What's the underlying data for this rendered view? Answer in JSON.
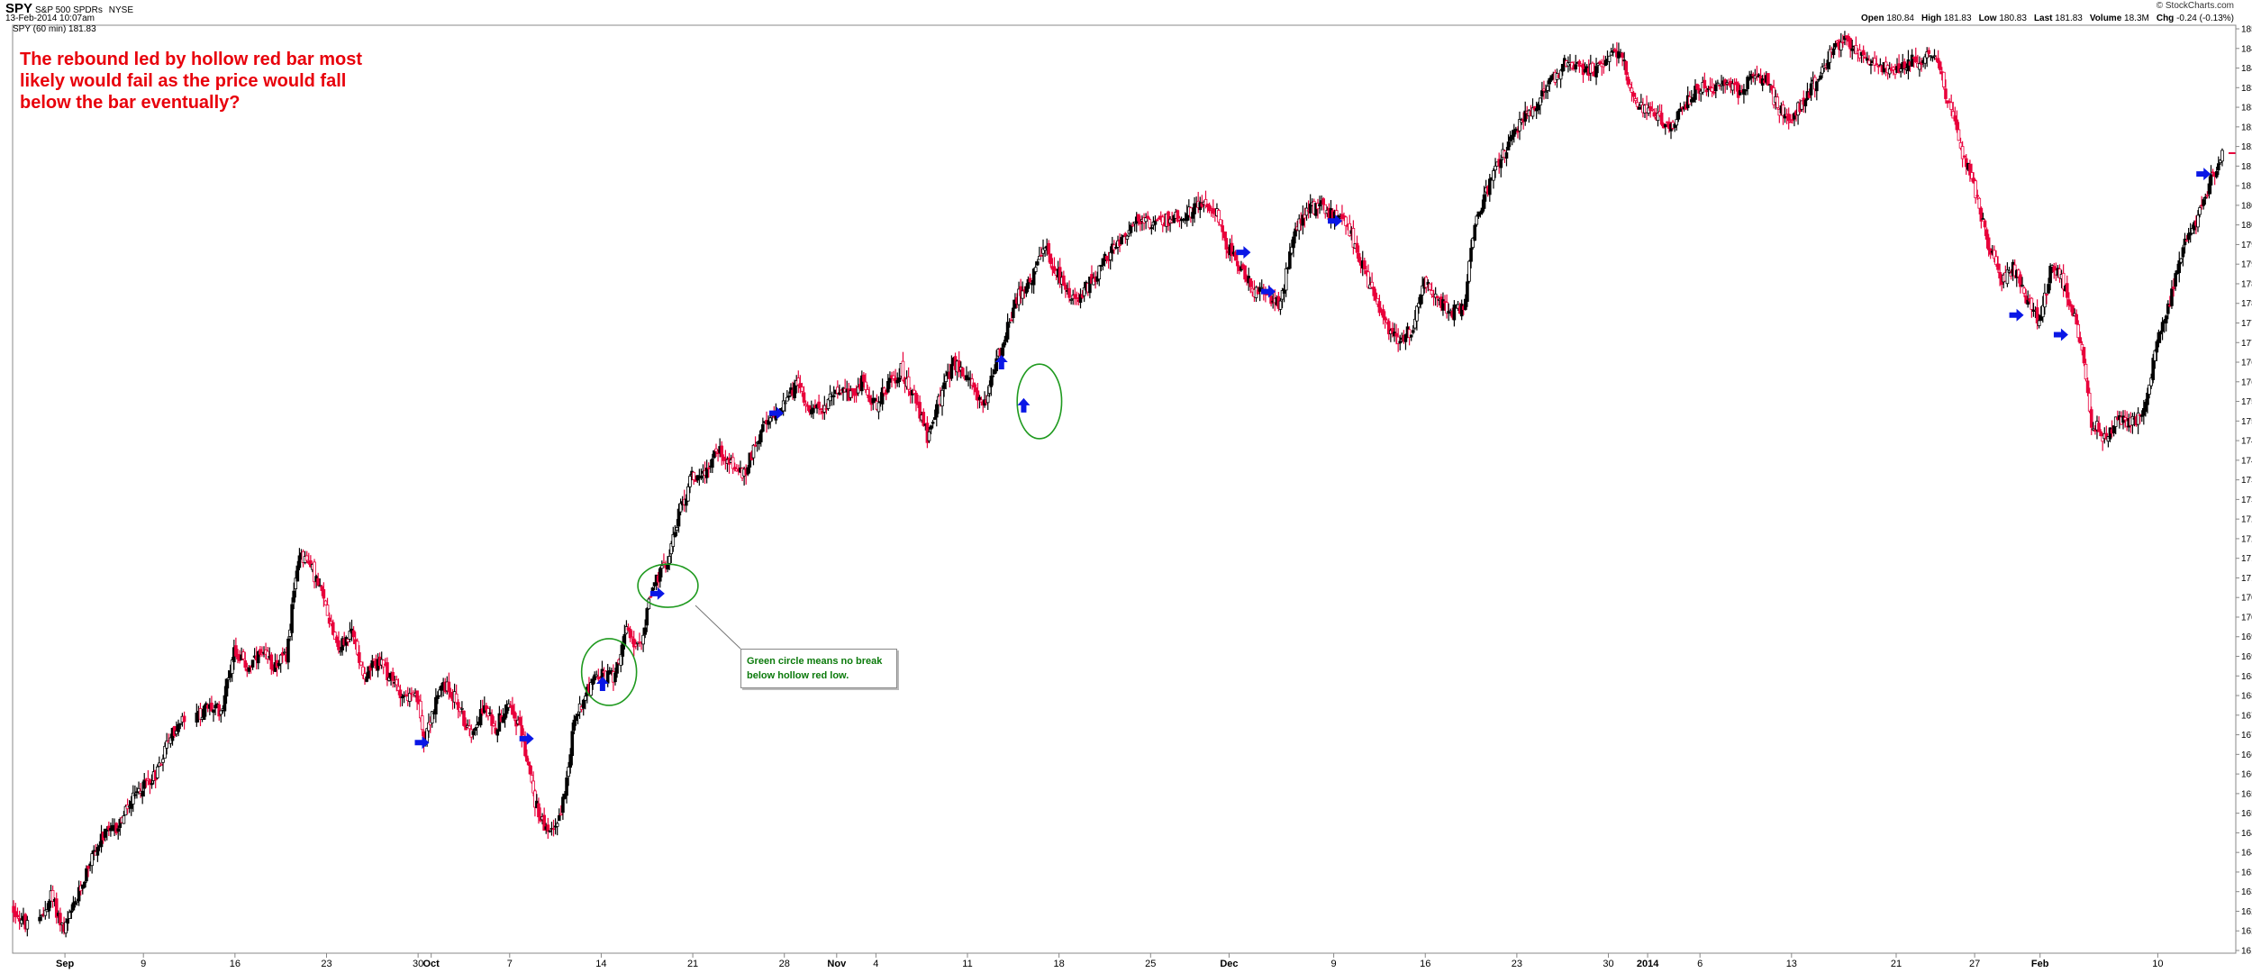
{
  "header": {
    "symbol": "SPY",
    "name": "S&P 500 SPDRs",
    "exchange": "NYSE",
    "date": "13-Feb-2014 10:07am",
    "legend": "SPY (60 min) 181.83",
    "brand": "© StockCharts.com",
    "quote": [
      {
        "label": "Open",
        "value": "180.84"
      },
      {
        "label": "High",
        "value": "181.83"
      },
      {
        "label": "Low",
        "value": "180.83"
      },
      {
        "label": "Last",
        "value": "181.83"
      },
      {
        "label": "Volume",
        "value": "18.3M"
      },
      {
        "label": "Chg",
        "value": "-0.24 (-0.13%)"
      }
    ]
  },
  "annotation": "The rebound led by hollow red bar most likely would fail as the price would fall below the bar eventually?",
  "callout": "Green circle means no break below hollow red low.",
  "colors": {
    "up": "#000000",
    "down": "#e8003b",
    "arrow": "#0a17e6",
    "circle": "#1f9a1f",
    "annotation": "#e8000b",
    "callout_text": "#0b7a0b"
  },
  "chart_data": {
    "type": "candlestick",
    "title": "SPY (60 min)",
    "y_axis": {
      "min": 161.5,
      "max": 185.0,
      "step": 0.5,
      "side": "right"
    },
    "x_axis": {
      "labels": [
        {
          "text": "Sep",
          "day": 0
        },
        {
          "text": "9",
          "day": 6
        },
        {
          "text": "16",
          "day": 13
        },
        {
          "text": "23",
          "day": 20
        },
        {
          "text": "30",
          "day": 27
        },
        {
          "text": "Oct",
          "day": 28
        },
        {
          "text": "7",
          "day": 34
        },
        {
          "text": "14",
          "day": 41
        },
        {
          "text": "21",
          "day": 48
        },
        {
          "text": "28",
          "day": 55
        },
        {
          "text": "Nov",
          "day": 59
        },
        {
          "text": "4",
          "day": 62
        },
        {
          "text": "11",
          "day": 69
        },
        {
          "text": "18",
          "day": 76
        },
        {
          "text": "25",
          "day": 83
        },
        {
          "text": "Dec",
          "day": 89
        },
        {
          "text": "9",
          "day": 97
        },
        {
          "text": "16",
          "day": 104
        },
        {
          "text": "23",
          "day": 111
        },
        {
          "text": "30",
          "day": 118
        },
        {
          "text": "2014",
          "day": 121
        },
        {
          "text": "6",
          "day": 125
        },
        {
          "text": "13",
          "day": 132
        },
        {
          "text": "21",
          "day": 140
        },
        {
          "text": "27",
          "day": 146
        },
        {
          "text": "Feb",
          "day": 151
        },
        {
          "text": "10",
          "day": 160
        }
      ],
      "day_range": [
        -4,
        165
      ]
    },
    "price_path": [
      [
        -4,
        162.6
      ],
      [
        -2,
        162.1
      ],
      [
        -1,
        162.9
      ],
      [
        0,
        162.0
      ],
      [
        1,
        162.8
      ],
      [
        2,
        163.8
      ],
      [
        3,
        164.4
      ],
      [
        4,
        164.6
      ],
      [
        5,
        165.2
      ],
      [
        6,
        165.7
      ],
      [
        7,
        166.0
      ],
      [
        8,
        166.9
      ],
      [
        10,
        167.4
      ],
      [
        11,
        167.7
      ],
      [
        12,
        167.6
      ],
      [
        13,
        169.2
      ],
      [
        14,
        168.7
      ],
      [
        15,
        169.0
      ],
      [
        16,
        168.8
      ],
      [
        17,
        169.0
      ],
      [
        18,
        171.7
      ],
      [
        19,
        171.2
      ],
      [
        20,
        170.3
      ],
      [
        21,
        169.2
      ],
      [
        22,
        169.6
      ],
      [
        23,
        168.5
      ],
      [
        24,
        168.9
      ],
      [
        25,
        168.4
      ],
      [
        26,
        168.0
      ],
      [
        27,
        167.9
      ],
      [
        27.5,
        166.9
      ],
      [
        28,
        167.4
      ],
      [
        29,
        168.3
      ],
      [
        30,
        167.9
      ],
      [
        31,
        167.0
      ],
      [
        32,
        167.7
      ],
      [
        33,
        167.2
      ],
      [
        34,
        167.9
      ],
      [
        35,
        167.0
      ],
      [
        35.5,
        166.2
      ],
      [
        36,
        165.3
      ],
      [
        37,
        164.4
      ],
      [
        38,
        165.0
      ],
      [
        39,
        167.3
      ],
      [
        40,
        168.2
      ],
      [
        41,
        168.5
      ],
      [
        42,
        168.5
      ],
      [
        43,
        169.6
      ],
      [
        44,
        169.2
      ],
      [
        45,
        170.8
      ],
      [
        46,
        171.3
      ],
      [
        47,
        172.6
      ],
      [
        48,
        173.6
      ],
      [
        49,
        173.7
      ],
      [
        50,
        174.3
      ],
      [
        51,
        173.9
      ],
      [
        52,
        173.6
      ],
      [
        53,
        174.6
      ],
      [
        54,
        175.0
      ],
      [
        55,
        175.5
      ],
      [
        56,
        175.9
      ],
      [
        57,
        175.4
      ],
      [
        58,
        175.2
      ],
      [
        59,
        175.9
      ],
      [
        60,
        175.6
      ],
      [
        61,
        176.0
      ],
      [
        62,
        175.4
      ],
      [
        63,
        175.9
      ],
      [
        64,
        176.3
      ],
      [
        65,
        175.6
      ],
      [
        66,
        174.6
      ],
      [
        67,
        175.6
      ],
      [
        68,
        176.5
      ],
      [
        69,
        176.1
      ],
      [
        70,
        175.6
      ],
      [
        70.5,
        175.3
      ],
      [
        71,
        176.3
      ],
      [
        72,
        177.2
      ],
      [
        73,
        178.3
      ],
      [
        74,
        178.6
      ],
      [
        75,
        179.4
      ],
      [
        76,
        178.7
      ],
      [
        77,
        178.0
      ],
      [
        78,
        178.3
      ],
      [
        79,
        178.8
      ],
      [
        80,
        179.3
      ],
      [
        81,
        179.7
      ],
      [
        82,
        180.1
      ],
      [
        83,
        180.0
      ],
      [
        84,
        180.1
      ],
      [
        85,
        180.2
      ],
      [
        86,
        180.3
      ],
      [
        87,
        180.6
      ],
      [
        88,
        180.4
      ],
      [
        89,
        179.4
      ],
      [
        90,
        178.9
      ],
      [
        91,
        178.3
      ],
      [
        92,
        178.2
      ],
      [
        93,
        178.0
      ],
      [
        94,
        179.8
      ],
      [
        95,
        180.4
      ],
      [
        96,
        180.5
      ],
      [
        97,
        180.2
      ],
      [
        98,
        180.1
      ],
      [
        99,
        179.2
      ],
      [
        100,
        178.3
      ],
      [
        101,
        177.5
      ],
      [
        102,
        177.1
      ],
      [
        103,
        177.3
      ],
      [
        104,
        178.5
      ],
      [
        105,
        178.1
      ],
      [
        106,
        177.8
      ],
      [
        107,
        177.9
      ],
      [
        108,
        180.3
      ],
      [
        109,
        181.0
      ],
      [
        110,
        181.8
      ],
      [
        111,
        182.4
      ],
      [
        112,
        182.9
      ],
      [
        113,
        183.3
      ],
      [
        114,
        183.8
      ],
      [
        115,
        184.2
      ],
      [
        116,
        184.0
      ],
      [
        117,
        183.9
      ],
      [
        118,
        184.3
      ],
      [
        119,
        184.5
      ],
      [
        120,
        183.2
      ],
      [
        121,
        182.9
      ],
      [
        122,
        182.7
      ],
      [
        123,
        182.5
      ],
      [
        124,
        183.1
      ],
      [
        125,
        183.5
      ],
      [
        126,
        183.4
      ],
      [
        127,
        183.6
      ],
      [
        128,
        183.4
      ],
      [
        129,
        183.7
      ],
      [
        130,
        183.8
      ],
      [
        131,
        183.0
      ],
      [
        132,
        182.6
      ],
      [
        133,
        183.2
      ],
      [
        134,
        183.7
      ],
      [
        135,
        184.3
      ],
      [
        136,
        184.7
      ],
      [
        137,
        184.4
      ],
      [
        138,
        184.2
      ],
      [
        139,
        184.0
      ],
      [
        140,
        183.9
      ],
      [
        141,
        184.2
      ],
      [
        142,
        184.2
      ],
      [
        143,
        184.4
      ],
      [
        144,
        183.2
      ],
      [
        145,
        182.0
      ],
      [
        146,
        181.0
      ],
      [
        147,
        179.6
      ],
      [
        148,
        178.6
      ],
      [
        149,
        178.9
      ],
      [
        150,
        178.1
      ],
      [
        151,
        177.5
      ],
      [
        152,
        179.0
      ],
      [
        153,
        178.4
      ],
      [
        154,
        177.3
      ],
      [
        155,
        175.0
      ],
      [
        156,
        174.6
      ],
      [
        157,
        175.0
      ],
      [
        158,
        174.9
      ],
      [
        159,
        175.3
      ],
      [
        160,
        177.0
      ],
      [
        161,
        178.0
      ],
      [
        162,
        179.5
      ],
      [
        163,
        180.0
      ],
      [
        164,
        181.0
      ],
      [
        165,
        181.8
      ]
    ],
    "last_price": 181.83,
    "arrows": [
      {
        "dir": "right",
        "day": 27.3,
        "price": 166.8
      },
      {
        "dir": "right",
        "day": 35.3,
        "price": 166.9
      },
      {
        "dir": "up",
        "day": 41.1,
        "price": 168.3
      },
      {
        "dir": "right",
        "day": 45.3,
        "price": 170.6
      },
      {
        "dir": "right",
        "day": 54.4,
        "price": 175.2
      },
      {
        "dir": "up",
        "day": 71.6,
        "price": 176.5
      },
      {
        "dir": "up",
        "day": 73.3,
        "price": 175.4
      },
      {
        "dir": "right",
        "day": 90.1,
        "price": 179.3
      },
      {
        "dir": "right",
        "day": 92.0,
        "price": 178.3
      },
      {
        "dir": "right",
        "day": 97.1,
        "price": 180.1
      },
      {
        "dir": "right",
        "day": 149.2,
        "price": 177.7
      },
      {
        "dir": "right",
        "day": 152.6,
        "price": 177.2
      },
      {
        "dir": "right",
        "day": 163.5,
        "price": 181.3
      }
    ],
    "circles": [
      {
        "day": 41.6,
        "price": 168.6,
        "rx_days": 2.1,
        "ry_price": 0.85
      },
      {
        "day": 46.1,
        "price": 170.8,
        "rx_days": 2.3,
        "ry_price": 0.55
      },
      {
        "day": 74.5,
        "price": 175.5,
        "rx_days": 1.7,
        "ry_price": 0.95
      }
    ]
  }
}
